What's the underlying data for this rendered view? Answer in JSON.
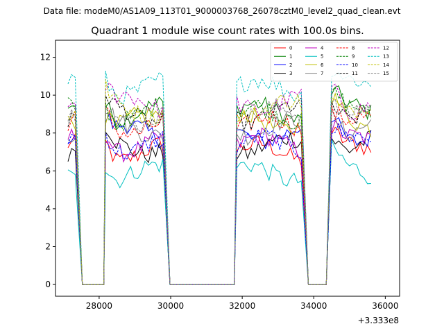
{
  "figure": {
    "suptitle": "Data file: modeM0/AS1A09_113T01_9000003768_26078cztM0_level2_quad_clean.evt"
  },
  "chart_data": {
    "type": "line",
    "title": "Quadrant 1 module wise count rates with 100.0s bins.",
    "xlabel": "",
    "ylabel": "",
    "x_offset_label": "+3.333e8",
    "xlim": [
      26780,
      36400
    ],
    "ylim": [
      -0.62,
      12.9
    ],
    "xticks": [
      28000,
      30000,
      32000,
      34000,
      36000
    ],
    "xtick_labels": [
      "28000",
      "30000",
      "32000",
      "34000",
      "36000"
    ],
    "yticks": [
      0,
      2,
      4,
      6,
      8,
      10,
      12
    ],
    "ytick_labels": [
      "0",
      "2",
      "4",
      "6",
      "8",
      "10",
      "12"
    ],
    "legend_location": "top-right",
    "legend_columns": 4,
    "segments": [
      {
        "start": 27130,
        "end": 27330
      },
      {
        "start": 28180,
        "end": 29780
      },
      {
        "start": 31850,
        "end": 33650
      },
      {
        "start": 34500,
        "end": 35650
      }
    ],
    "zero_intervals": [
      [
        27530,
        28130
      ],
      [
        29980,
        31780
      ],
      [
        33850,
        34430
      ]
    ],
    "series": [
      {
        "name": "0",
        "color": "#ff0000",
        "dashed": false,
        "level": 7.0
      },
      {
        "name": "1",
        "color": "#008000",
        "dashed": false,
        "level": 9.1
      },
      {
        "name": "2",
        "color": "#0000ff",
        "dashed": false,
        "level": 8.0
      },
      {
        "name": "3",
        "color": "#000000",
        "dashed": false,
        "level": 7.3
      },
      {
        "name": "4",
        "color": "#bf00bf",
        "dashed": false,
        "level": 7.4
      },
      {
        "name": "5",
        "color": "#00bfbf",
        "dashed": false,
        "level": 5.9
      },
      {
        "name": "6",
        "color": "#bfbf00",
        "dashed": false,
        "level": 8.6
      },
      {
        "name": "7",
        "color": "#808080",
        "dashed": false,
        "level": 8.3
      },
      {
        "name": "8",
        "color": "#ff0000",
        "dashed": true,
        "level": 8.4
      },
      {
        "name": "9",
        "color": "#008000",
        "dashed": true,
        "level": 9.0
      },
      {
        "name": "10",
        "color": "#0000ff",
        "dashed": true,
        "level": 7.4
      },
      {
        "name": "11",
        "color": "#000000",
        "dashed": true,
        "level": 9.0
      },
      {
        "name": "12",
        "color": "#bf00bf",
        "dashed": true,
        "level": 9.6
      },
      {
        "name": "13",
        "color": "#00bfbf",
        "dashed": true,
        "level": 10.4
      },
      {
        "name": "14",
        "color": "#bfbf00",
        "dashed": true,
        "level": 9.3
      },
      {
        "name": "15",
        "color": "#808080",
        "dashed": true,
        "level": 8.9
      }
    ]
  }
}
